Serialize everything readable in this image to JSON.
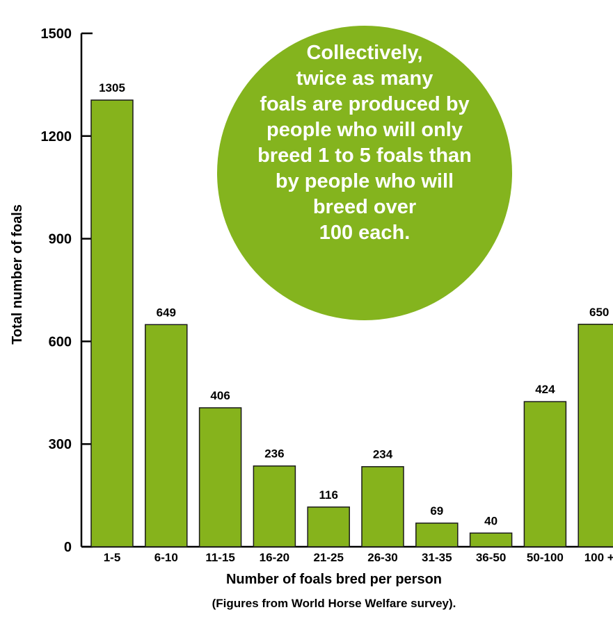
{
  "colors": {
    "bar": "#86b31c",
    "bar_stroke": "#1a1a1a",
    "callout": "#84b41e",
    "axis": "#000000"
  },
  "chart_data": {
    "type": "bar",
    "categories": [
      "1-5",
      "6-10",
      "11-15",
      "16-20",
      "21-25",
      "26-30",
      "31-35",
      "36-50",
      "50-100",
      "100 +"
    ],
    "values": [
      1305,
      649,
      406,
      236,
      116,
      234,
      69,
      40,
      424,
      650
    ],
    "ylabel": "Total number of foals",
    "xlabel": "Number of foals bred per person",
    "footnote": "(Figures from World Horse Welfare survey).",
    "ylim": [
      0,
      1500
    ],
    "yticks": [
      0,
      300,
      600,
      900,
      1200,
      1500
    ],
    "grid": false,
    "data_labels": true,
    "annotation": {
      "lines": [
        "Collectively,",
        "twice as many",
        "foals are produced by",
        "people who will only",
        "breed 1 to 5 foals than",
        "by people who will",
        "breed over",
        "100 each."
      ]
    }
  }
}
